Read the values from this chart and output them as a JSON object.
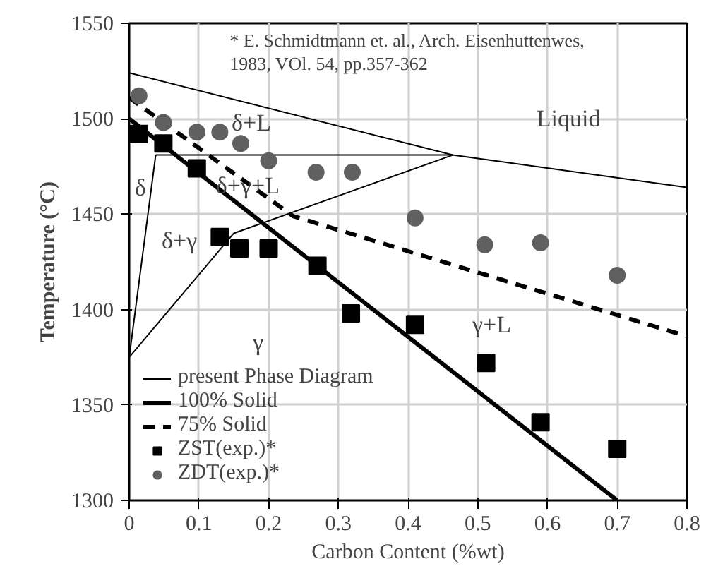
{
  "chart_data": {
    "type": "line",
    "xlabel": "Carbon Content (%wt)",
    "ylabel": "Temperature (°C)",
    "xlim": [
      0,
      0.8
    ],
    "ylim": [
      1300,
      1550
    ],
    "xticks": [
      0,
      0.1,
      0.2,
      0.3,
      0.4,
      0.5,
      0.6,
      0.7,
      0.8
    ],
    "yticks": [
      1300,
      1350,
      1400,
      1450,
      1500,
      1550
    ],
    "grid": true,
    "legend": "bottom left",
    "series": [
      {
        "name": "present Phase Diagram",
        "color": "#000000",
        "line_style": "solid",
        "x": [
          0,
          0.464,
          0.8
        ],
        "values": [
          1524,
          1481,
          1464
        ]
      },
      {
        "color": "#000000",
        "line_style": "solid",
        "x": [
          0.038,
          0.464
        ],
        "values": [
          1481,
          1481
        ]
      },
      {
        "color": "#000000",
        "line_style": "solid",
        "x": [
          0,
          0.038
        ],
        "values": [
          1375,
          1481
        ]
      },
      {
        "color": "#000000",
        "line_style": "solid",
        "x": [
          0,
          0.15,
          0.464
        ],
        "values": [
          1375,
          1440,
          1481
        ]
      },
      {
        "name": "100% Solid",
        "color": "#000000",
        "line_style": "solid",
        "x": [
          0,
          0.7
        ],
        "values": [
          1500,
          1300
        ]
      },
      {
        "name": "75% Solid",
        "color": "#000000",
        "line_style": "dashed",
        "x": [
          0,
          0.235,
          0.8
        ],
        "values": [
          1511,
          1449,
          1386
        ]
      },
      {
        "name": "ZST(exp.)*",
        "type": "scatter",
        "marker": "square",
        "color": "#000000",
        "x": [
          0.014,
          0.049,
          0.097,
          0.13,
          0.158,
          0.2,
          0.27,
          0.318,
          0.41,
          0.512,
          0.59,
          0.7
        ],
        "values": [
          1492,
          1487,
          1474,
          1438,
          1432,
          1432,
          1423,
          1398,
          1392,
          1372,
          1341,
          1327
        ]
      },
      {
        "name": "ZDT(exp.)*",
        "type": "scatter",
        "marker": "circle",
        "color": "#606060",
        "x": [
          0.014,
          0.049,
          0.097,
          0.13,
          0.16,
          0.2,
          0.268,
          0.32,
          0.41,
          0.51,
          0.59,
          0.7
        ],
        "values": [
          1512,
          1498,
          1493,
          1493,
          1487,
          1478,
          1472,
          1472,
          1448,
          1434,
          1435,
          1418
        ]
      }
    ],
    "annotations": [
      "* E. Schmidtmann et. al., Arch. Eisenhuttenwes,",
      "1983, VOl. 54, pp.357-362",
      "δ+L",
      "Liquid",
      "δ",
      "δ+γ+L",
      "δ+γ",
      "γ",
      "γ+L"
    ]
  }
}
